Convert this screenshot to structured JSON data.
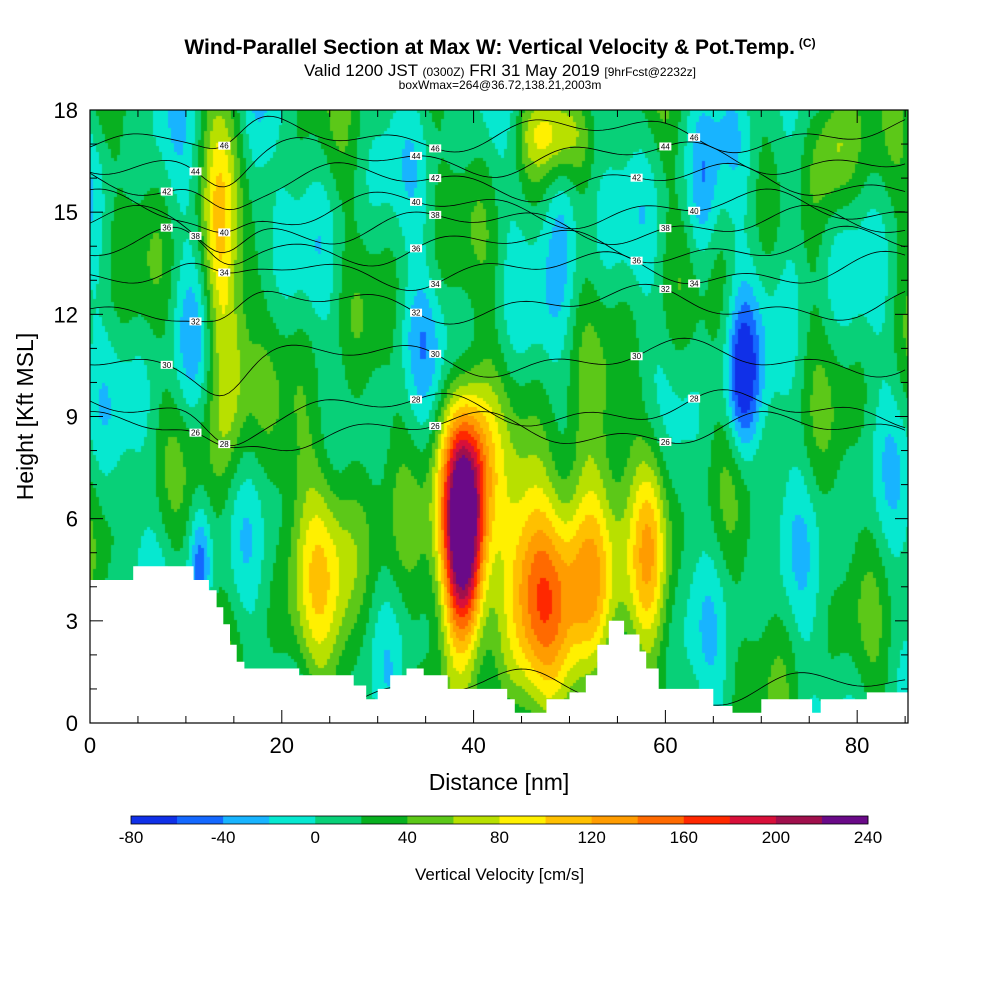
{
  "title": {
    "main": "Wind-Parallel Section at Max W: Vertical Velocity & Pot.Temp.",
    "copyright": "(C)",
    "valid_prefix": "Valid 1200 JST",
    "valid_utc": "(0300Z)",
    "valid_date": "FRI 31 May 2019",
    "forecast": "[9hrFcst@2232z]",
    "box_info": "boxWmax=264@36.72,138.21,2003m"
  },
  "chart_data": {
    "type": "heatmap",
    "xlabel": "Distance [nm]",
    "ylabel": "Height [Kft MSL]",
    "xlim": [
      0,
      85.3
    ],
    "ylim": [
      0,
      18
    ],
    "x_ticks": [
      "0",
      "20",
      "40",
      "60",
      "80"
    ],
    "y_ticks": [
      "0",
      "3",
      "6",
      "9",
      "12",
      "15",
      "18"
    ],
    "colorbar": {
      "label": "Vertical Velocity [cm/s]",
      "tick_labels": [
        "-80",
        "-40",
        "0",
        "40",
        "80",
        "120",
        "160",
        "200",
        "240"
      ],
      "levels": [
        -80,
        -60,
        -40,
        -20,
        0,
        20,
        40,
        60,
        80,
        100,
        120,
        140,
        160,
        180,
        200,
        220,
        240
      ],
      "colors": [
        "#1030e8",
        "#1468ff",
        "#18b4ff",
        "#06e8d0",
        "#08d078",
        "#08b020",
        "#5cc818",
        "#b8e000",
        "#fff000",
        "#ffc000",
        "#ff9c00",
        "#ff6a00",
        "#ff2800",
        "#d8103a",
        "#a0104c",
        "#6a0a88"
      ]
    },
    "velocity_features": [
      {
        "x": 39,
        "y": 4.8,
        "peak": 230,
        "sx": 1.6,
        "sy": 1.9
      },
      {
        "x": 39,
        "y": 7.5,
        "peak": 150,
        "sx": 1.9,
        "sy": 1.8
      },
      {
        "x": 46.5,
        "y": 4.2,
        "peak": 125,
        "sx": 2.8,
        "sy": 2.3
      },
      {
        "x": 52,
        "y": 4.5,
        "peak": 110,
        "sx": 2.2,
        "sy": 2.5
      },
      {
        "x": 58.5,
        "y": 5.5,
        "peak": 90,
        "sx": 1.4,
        "sy": 2.5
      },
      {
        "x": 25,
        "y": 5.0,
        "peak": 70,
        "sx": 3.0,
        "sy": 2.6
      },
      {
        "x": 13.5,
        "y": 14.0,
        "peak": 85,
        "sx": 1.2,
        "sy": 3.5
      },
      {
        "x": 15,
        "y": 10.5,
        "peak": 55,
        "sx": 1.2,
        "sy": 2.3
      },
      {
        "x": 77.5,
        "y": 17,
        "peak": 60,
        "sx": 1.6,
        "sy": 1.5
      },
      {
        "x": 48,
        "y": 17.3,
        "peak": 70,
        "sx": 2.5,
        "sy": 0.9
      },
      {
        "x": 11.5,
        "y": 4.6,
        "peak": -60,
        "sx": 0.8,
        "sy": 1.2
      },
      {
        "x": 68,
        "y": 10.0,
        "peak": -80,
        "sx": 1.2,
        "sy": 1.6
      },
      {
        "x": 17,
        "y": 17,
        "peak": -45,
        "sx": 1.1,
        "sy": 2.0
      },
      {
        "x": 49.5,
        "y": 15.5,
        "peak": -45,
        "sx": 1.3,
        "sy": 2.2
      },
      {
        "x": 64,
        "y": 15.3,
        "peak": -45,
        "sx": 1.1,
        "sy": 1.9
      },
      {
        "x": 73.5,
        "y": 15.5,
        "peak": -30,
        "sx": 1.3,
        "sy": 2.3
      },
      {
        "x": 34,
        "y": 11.5,
        "peak": -30,
        "sx": 2.0,
        "sy": 1.3
      },
      {
        "x": 10.5,
        "y": 11,
        "peak": -25,
        "sx": 1.8,
        "sy": 1.6
      }
    ],
    "theta_contours": [
      {
        "value": 25,
        "y": 1.0
      },
      {
        "value": 26,
        "y": 8.6
      },
      {
        "value": 28,
        "y": 9.2
      },
      {
        "value": 30,
        "y": 10.7
      },
      {
        "value": 32,
        "y": 12.3
      },
      {
        "value": 34,
        "y": 13.3
      },
      {
        "value": 36,
        "y": 14.0
      },
      {
        "value": 38,
        "y": 14.6
      },
      {
        "value": 40,
        "y": 15.1
      },
      {
        "value": 42,
        "y": 15.9
      },
      {
        "value": 44,
        "y": 16.6
      },
      {
        "value": 46,
        "y": 17.3
      }
    ],
    "terrain": [
      [
        0,
        4.2
      ],
      [
        4.5,
        4.2
      ],
      [
        4.5,
        4.6
      ],
      [
        10.8,
        4.6
      ],
      [
        10.8,
        4.2
      ],
      [
        12.4,
        4.2
      ],
      [
        12.4,
        3.9
      ],
      [
        13.2,
        3.9
      ],
      [
        13.2,
        3.4
      ],
      [
        13.9,
        3.4
      ],
      [
        13.9,
        2.9
      ],
      [
        14.6,
        2.9
      ],
      [
        14.6,
        2.3
      ],
      [
        15.3,
        2.3
      ],
      [
        15.3,
        1.8
      ],
      [
        16.1,
        1.8
      ],
      [
        16.1,
        1.6
      ],
      [
        21.8,
        1.6
      ],
      [
        21.8,
        1.4
      ],
      [
        27.5,
        1.4
      ],
      [
        27.5,
        1.1
      ],
      [
        28.8,
        1.1
      ],
      [
        28.8,
        0.7
      ],
      [
        30.0,
        0.7
      ],
      [
        30.0,
        1.0
      ],
      [
        31.3,
        1.0
      ],
      [
        31.3,
        1.4
      ],
      [
        33.0,
        1.4
      ],
      [
        33.0,
        1.6
      ],
      [
        34.8,
        1.6
      ],
      [
        34.8,
        1.4
      ],
      [
        37.3,
        1.4
      ],
      [
        37.3,
        1.0
      ],
      [
        43.5,
        1.0
      ],
      [
        43.5,
        0.7
      ],
      [
        44.3,
        0.7
      ],
      [
        44.3,
        0.3
      ],
      [
        47.6,
        0.3
      ],
      [
        47.6,
        0.7
      ],
      [
        50.0,
        0.7
      ],
      [
        50.0,
        0.9
      ],
      [
        51.7,
        0.9
      ],
      [
        51.7,
        1.4
      ],
      [
        52.9,
        1.4
      ],
      [
        52.9,
        2.3
      ],
      [
        54.1,
        2.3
      ],
      [
        54.1,
        3.0
      ],
      [
        55.7,
        3.0
      ],
      [
        55.7,
        2.6
      ],
      [
        57.3,
        2.6
      ],
      [
        57.3,
        2.1
      ],
      [
        58.0,
        2.1
      ],
      [
        58.0,
        1.6
      ],
      [
        59.3,
        1.6
      ],
      [
        59.3,
        1.0
      ],
      [
        65.0,
        1.0
      ],
      [
        65.0,
        0.5
      ],
      [
        67.0,
        0.5
      ],
      [
        67.0,
        0.3
      ],
      [
        70.0,
        0.3
      ],
      [
        70.0,
        0.7
      ],
      [
        73.0,
        0.7
      ],
      [
        73.0,
        0.7
      ],
      [
        75.3,
        0.7
      ],
      [
        75.3,
        0.3
      ],
      [
        76.2,
        0.3
      ],
      [
        76.2,
        0.7
      ],
      [
        81.0,
        0.7
      ],
      [
        81.0,
        0.9
      ],
      [
        85.3,
        0.9
      ]
    ]
  }
}
